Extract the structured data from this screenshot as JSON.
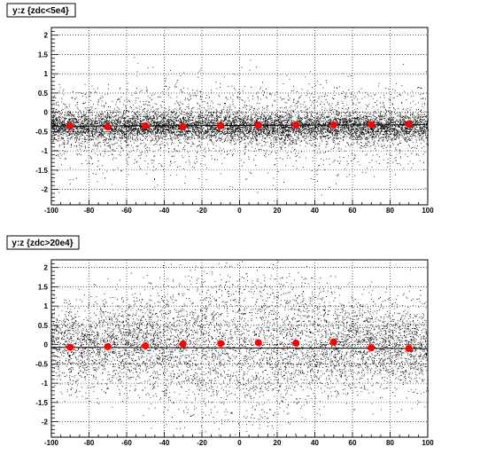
{
  "chart_data": [
    {
      "type": "scatter",
      "title": "y:z {zdc<5e4}",
      "xlim": [
        -100,
        100
      ],
      "ylim": [
        -2.4,
        2.2
      ],
      "x_ticks": [
        -100,
        -80,
        -60,
        -40,
        -20,
        0,
        20,
        40,
        60,
        80,
        100
      ],
      "y_ticks": [
        -2,
        -1.5,
        -1,
        -0.5,
        0,
        0.5,
        1,
        1.5,
        2
      ],
      "grid": true,
      "profile_points": {
        "x": [
          -90,
          -70,
          -50,
          -30,
          -10,
          10,
          30,
          50,
          70,
          90
        ],
        "y": [
          -0.35,
          -0.38,
          -0.35,
          -0.37,
          -0.35,
          -0.33,
          -0.33,
          -0.33,
          -0.32,
          -0.31
        ]
      },
      "fit_line": {
        "x": [
          -100,
          100
        ],
        "y": [
          -0.36,
          -0.32
        ]
      },
      "cloud": {
        "center_y": -0.37,
        "spread_y": 0.35,
        "density": "high"
      }
    },
    {
      "type": "scatter",
      "title": "y:z {zdc>20e4}",
      "xlim": [
        -100,
        100
      ],
      "ylim": [
        -2.4,
        2.2
      ],
      "x_ticks": [
        -100,
        -80,
        -60,
        -40,
        -20,
        0,
        20,
        40,
        60,
        80,
        100
      ],
      "y_ticks": [
        -2,
        -1.5,
        -1,
        -0.5,
        0,
        0.5,
        1,
        1.5,
        2
      ],
      "grid": true,
      "profile_points": {
        "x": [
          -90,
          -70,
          -50,
          -30,
          -10,
          10,
          30,
          50,
          70,
          90
        ],
        "y": [
          -0.07,
          -0.05,
          -0.03,
          0.02,
          0.03,
          0.05,
          0.04,
          0.07,
          -0.08,
          -0.1
        ]
      },
      "fit_line": {
        "x": [
          -100,
          100
        ],
        "y": [
          -0.07,
          -0.1
        ]
      },
      "cloud": {
        "center_y": 0.0,
        "spread_y": 0.85,
        "density": "medium"
      }
    }
  ],
  "colors": {
    "marker": "#ff0000",
    "points": "#000000",
    "grid": "#000000"
  }
}
